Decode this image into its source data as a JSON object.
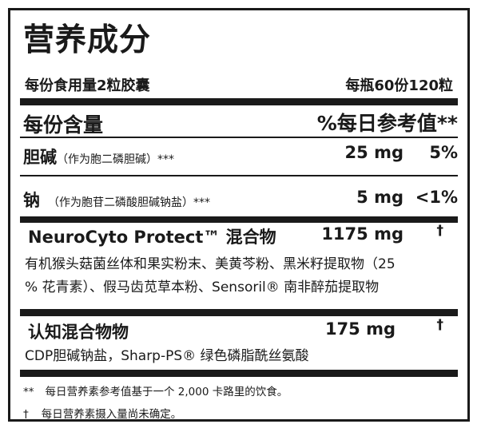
{
  "title": "营养成分",
  "serving_size": "每份食用量2粒胶囊",
  "servings_per_container": "每瓶60份120粒",
  "header": {
    "amount_per_serving": "每份含量",
    "daily_value": "%每日参考值**"
  },
  "rows": [
    {
      "name": "胆碱",
      "note": "（作为胞二磷胆碱）***",
      "amount": "25 mg",
      "dv": "5%"
    },
    {
      "name": "钠",
      "note": "（作为胞苷二磷酸胆碱钠盐）***",
      "amount": "5 mg",
      "dv": "<1%"
    }
  ],
  "blends": [
    {
      "name": "NeuroCyto Protect™ 混合物",
      "amount": "1175 mg",
      "dv": "†",
      "ingredients_line1": "有机猴头菇菌丝体和果实粉末、美黄芩粉、黑米籽提取物（25",
      "ingredients_line2": "% 花青素）、假马齿苋草本粉、Sensoril® 南非醉茄提取物"
    },
    {
      "name": "认知混合物物",
      "amount": "175 mg",
      "dv": "†",
      "ingredients_line1": "CDP胆碱钠盐，Sharp-PS® 绿色磷脂酰丝氨酸"
    }
  ],
  "footnotes": [
    {
      "mark": "**",
      "text": "每日营养素参考值基于一个 2,000 卡路里的饮食。"
    },
    {
      "mark": "†",
      "text": "每日营养素摄入量尚未确定。"
    }
  ]
}
